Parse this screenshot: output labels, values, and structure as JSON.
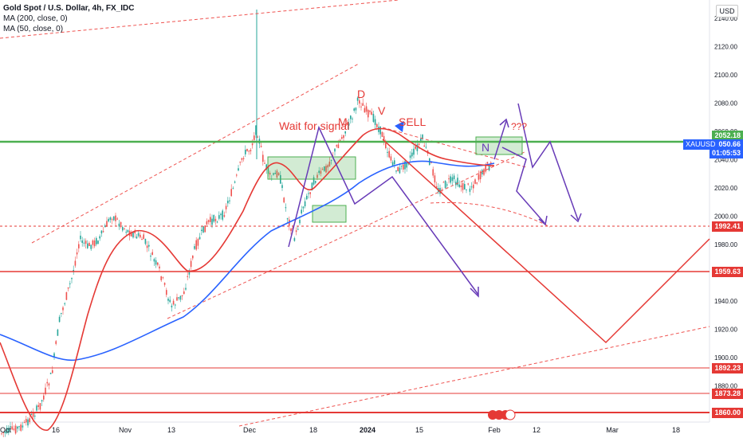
{
  "legend": {
    "symbol": "Gold Spot / U.S. Dollar, 4h, FX_IDC",
    "ma200": "MA (200, close, 0)",
    "ma50": "MA (50, close, 0)"
  },
  "currency_button": "USD",
  "y_axis_ticks": [
    "2140.00",
    "2120.00",
    "2100.00",
    "2080.00",
    "2060.00",
    "2040.00",
    "2020.00",
    "2000.00",
    "1980.00",
    "1960.00",
    "1940.00",
    "1920.00",
    "1900.00",
    "1880.00",
    "1860.00"
  ],
  "x_axis_ticks": [
    "Oct",
    "16",
    "Nov",
    "13",
    "Dec",
    "18",
    "2024",
    "15",
    "Feb",
    "12",
    "Mar",
    "18"
  ],
  "price_labels": {
    "last": "2052.18",
    "current": "2050.66",
    "countdown": "01:05:53",
    "symbol": "XAUUSD",
    "l1": "1992.41",
    "l2": "1959.63",
    "l3": "1892.23",
    "l4": "1873.28",
    "l5": "1860.00"
  },
  "annotations": {
    "wait": "Wait for signal",
    "sell": "SELL",
    "d": "D",
    "v": "V",
    "m": "M",
    "n": "N",
    "q": "???"
  },
  "colors": {
    "green_line": "#4caf50",
    "red_line": "#e53935",
    "ma200": "#2962ff",
    "ma50": "#e53935",
    "purple": "#673ab7",
    "up_candle": "#26a69a",
    "down_candle": "#ef5350"
  }
}
